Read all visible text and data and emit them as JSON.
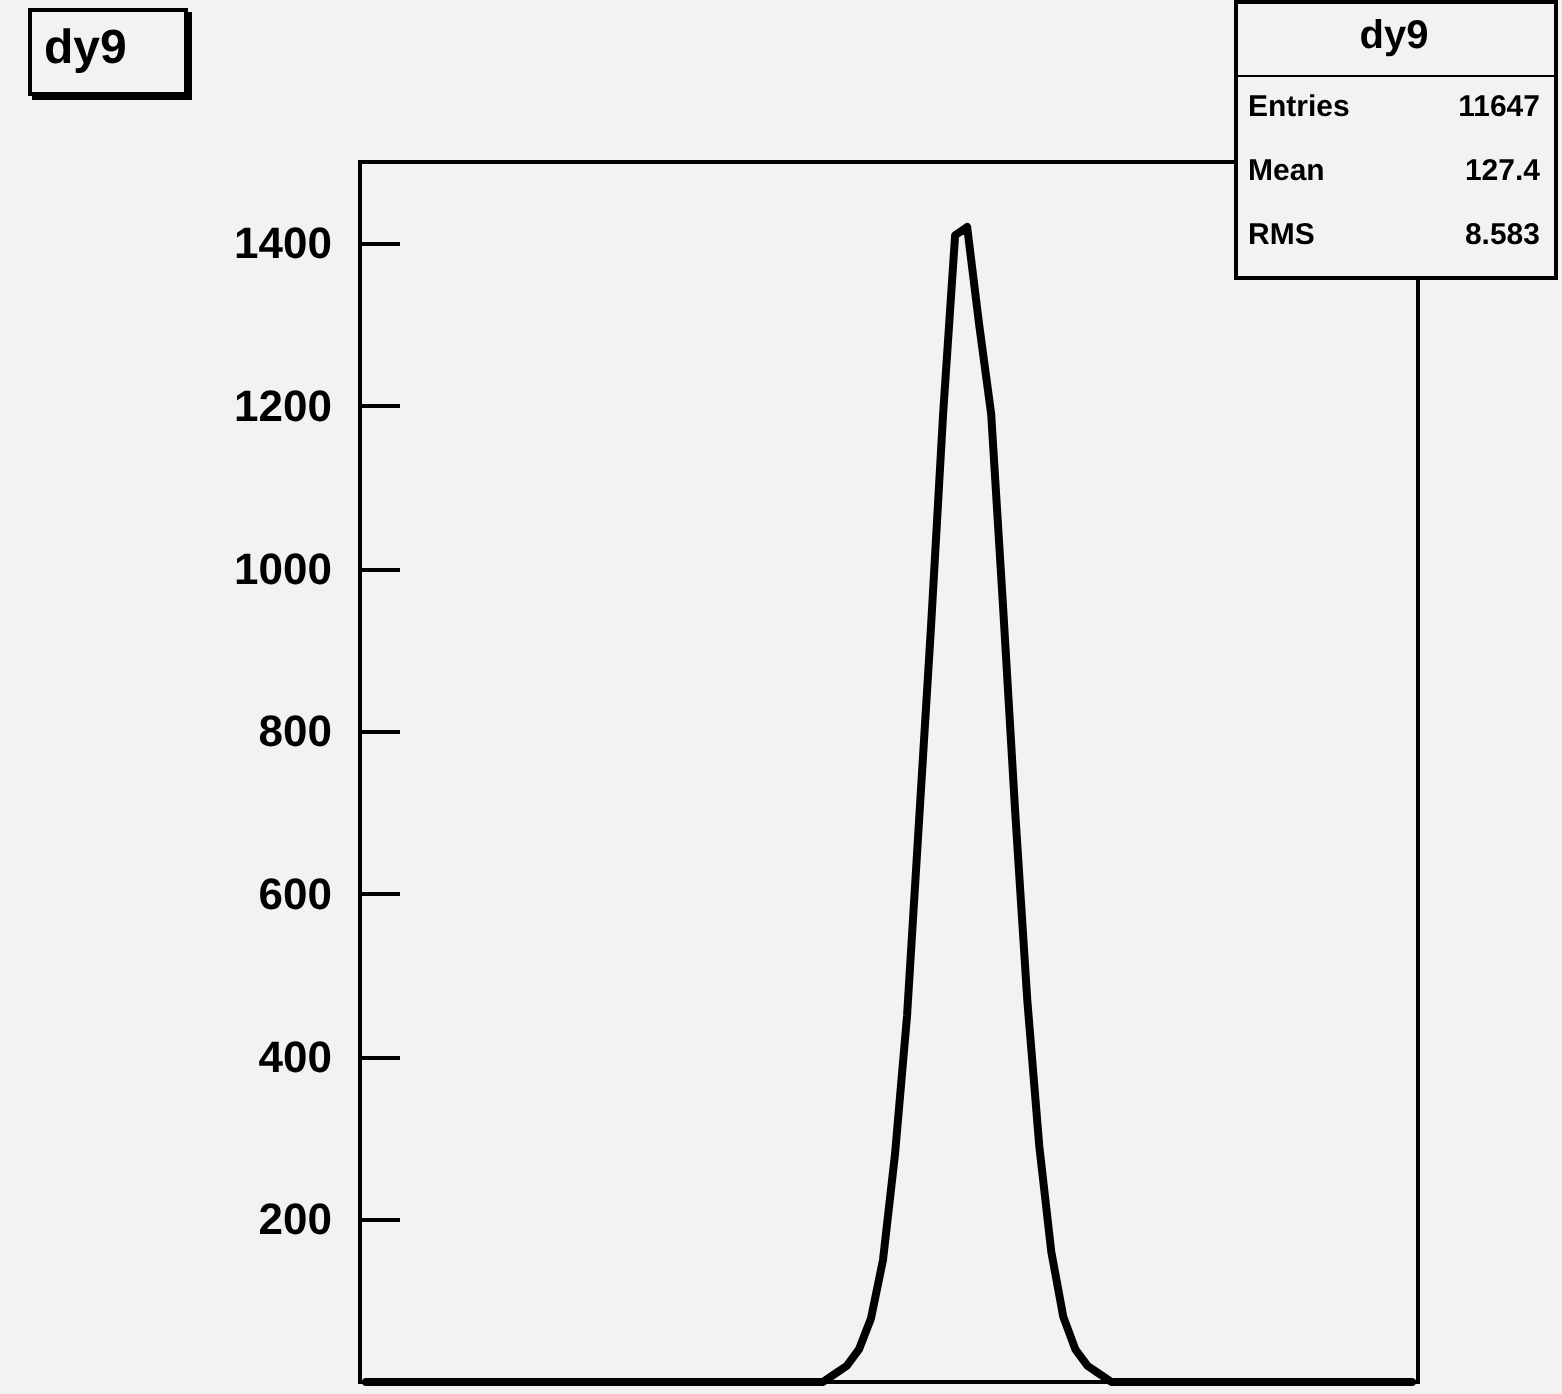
{
  "chart_data": {
    "type": "line",
    "title": "dy9",
    "annotations": [
      "dy9",
      "Entries",
      "11647",
      "Mean",
      "127.4",
      "RMS",
      "8.583"
    ],
    "categories": [
      null,
      null,
      null,
      null,
      null,
      null,
      null,
      null,
      null,
      null,
      null,
      null,
      null,
      null,
      null,
      null,
      null,
      null,
      null,
      null,
      null,
      null,
      null,
      null,
      null,
      null,
      null,
      null,
      null,
      null,
      null,
      null,
      null,
      null,
      null,
      null,
      null,
      null,
      null,
      null,
      null,
      null,
      null,
      null,
      null,
      null,
      null,
      null,
      null,
      null,
      null,
      null,
      null,
      null,
      null,
      null,
      null,
      null,
      null,
      null,
      null,
      null,
      null,
      null,
      null,
      null,
      null,
      null,
      null,
      null,
      null,
      null,
      null,
      null,
      null,
      null,
      null,
      null,
      null,
      null,
      null,
      null,
      null,
      null,
      null,
      null,
      null,
      null
    ],
    "values": [
      0,
      0,
      0,
      0,
      0,
      0,
      0,
      0,
      0,
      0,
      0,
      0,
      0,
      0,
      0,
      0,
      0,
      0,
      0,
      0,
      0,
      0,
      0,
      0,
      0,
      0,
      0,
      0,
      0,
      0,
      0,
      0,
      0,
      0,
      0,
      0,
      0,
      0,
      0,
      10,
      20,
      40,
      78,
      150,
      280,
      450,
      690,
      930,
      1190,
      1410,
      1420,
      1300,
      1190,
      950,
      700,
      470,
      290,
      160,
      80,
      40,
      20,
      10,
      0,
      0,
      0,
      0,
      0,
      0,
      0,
      0,
      0,
      0,
      0,
      0,
      0,
      0,
      0,
      0,
      0,
      0,
      0,
      0,
      0,
      0,
      0,
      0,
      0,
      0
    ],
    "color": "#000000",
    "ylim": [
      0,
      1500
    ],
    "yticks": [
      200,
      400,
      600,
      800,
      1000,
      1200,
      1400
    ],
    "grid": false,
    "tick_labels": "y"
  }
}
